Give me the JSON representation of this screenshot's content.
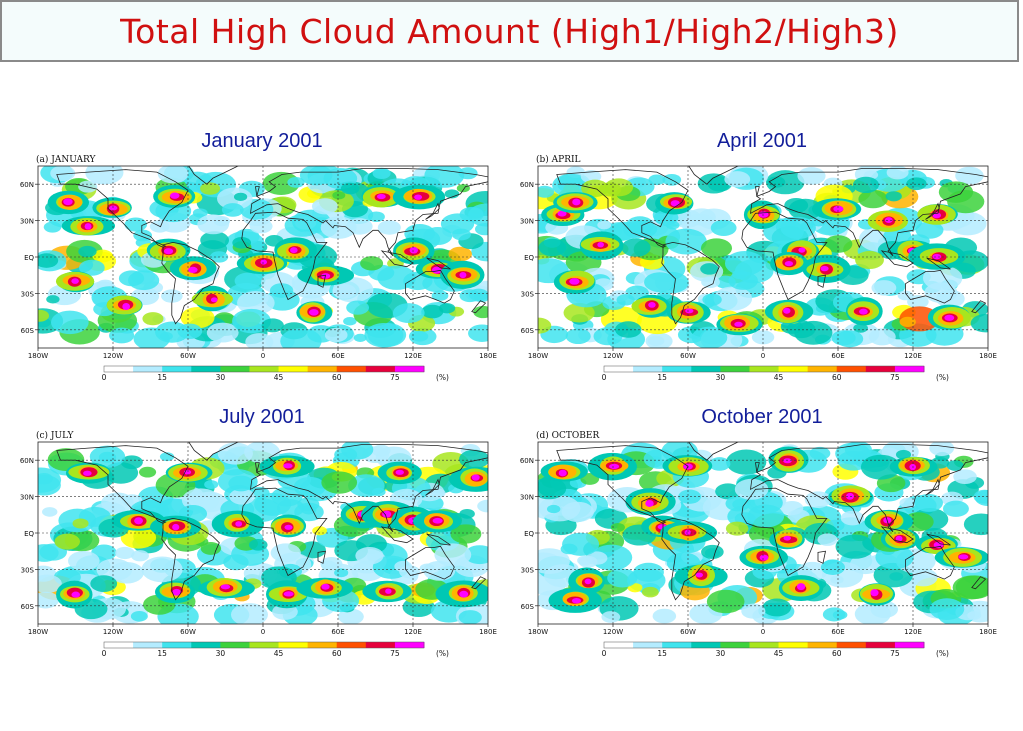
{
  "page_title": "Total High Cloud Amount (High1/High2/High3)",
  "panels": [
    {
      "title": "January 2001",
      "panel_label": "(a) JANUARY"
    },
    {
      "title": "April 2001",
      "panel_label": "(b) APRIL"
    },
    {
      "title": "July 2001",
      "panel_label": "(c) JULY"
    },
    {
      "title": "October 2001",
      "panel_label": "(d) OCTOBER"
    }
  ],
  "lon_ticks": [
    "180W",
    "120W",
    "60W",
    "0",
    "60E",
    "120E",
    "180E"
  ],
  "lat_ticks": [
    "60N",
    "30N",
    "EQ",
    "30S",
    "60S"
  ],
  "colorbar": {
    "ticks": [
      "0",
      "15",
      "30",
      "45",
      "60",
      "75"
    ],
    "unit": "(%)",
    "colors": [
      "#ffffff",
      "#b4ecff",
      "#3fe4ee",
      "#00c8b4",
      "#3cd23c",
      "#a8e61e",
      "#ffff00",
      "#ffb400",
      "#ff5000",
      "#e6003c",
      "#ff00ff"
    ]
  },
  "hotspots": {
    "jan": [
      [
        -155,
        45
      ],
      [
        -70,
        50
      ],
      [
        95,
        50
      ],
      [
        125,
        50
      ],
      [
        -75,
        5
      ],
      [
        -55,
        -10
      ],
      [
        25,
        5
      ],
      [
        50,
        -15
      ],
      [
        120,
        5
      ],
      [
        140,
        -10
      ],
      [
        160,
        -15
      ],
      [
        -40,
        -35
      ],
      [
        -110,
        -40
      ],
      [
        -150,
        -20
      ],
      [
        40,
        -45
      ],
      [
        -140,
        25
      ],
      [
        -120,
        40
      ],
      [
        0,
        -5
      ]
    ],
    "apr": [
      [
        -160,
        35
      ],
      [
        -150,
        45
      ],
      [
        -70,
        45
      ],
      [
        50,
        -10
      ],
      [
        30,
        5
      ],
      [
        20,
        -5
      ],
      [
        120,
        5
      ],
      [
        140,
        0
      ],
      [
        -60,
        -45
      ],
      [
        20,
        -45
      ],
      [
        -130,
        10
      ],
      [
        -150,
        -20
      ],
      [
        0,
        35
      ],
      [
        60,
        40
      ],
      [
        100,
        30
      ],
      [
        140,
        35
      ],
      [
        80,
        -45
      ],
      [
        150,
        -50
      ],
      [
        -20,
        -55
      ],
      [
        -90,
        -40
      ]
    ],
    "jul": [
      [
        -140,
        50
      ],
      [
        -60,
        50
      ],
      [
        20,
        55
      ],
      [
        110,
        50
      ],
      [
        -100,
        10
      ],
      [
        -70,
        5
      ],
      [
        -20,
        8
      ],
      [
        20,
        5
      ],
      [
        80,
        15
      ],
      [
        100,
        15
      ],
      [
        120,
        10
      ],
      [
        140,
        10
      ],
      [
        -150,
        -50
      ],
      [
        -70,
        -48
      ],
      [
        20,
        -50
      ],
      [
        100,
        -48
      ],
      [
        160,
        -50
      ],
      [
        -30,
        -45
      ],
      [
        50,
        -45
      ],
      [
        170,
        45
      ]
    ],
    "oct": [
      [
        -160,
        50
      ],
      [
        -120,
        55
      ],
      [
        -60,
        55
      ],
      [
        20,
        60
      ],
      [
        120,
        55
      ],
      [
        -80,
        5
      ],
      [
        -60,
        0
      ],
      [
        20,
        -5
      ],
      [
        100,
        10
      ],
      [
        110,
        -5
      ],
      [
        140,
        -10
      ],
      [
        160,
        -20
      ],
      [
        -140,
        -40
      ],
      [
        -50,
        -35
      ],
      [
        30,
        -45
      ],
      [
        90,
        -50
      ],
      [
        -150,
        -55
      ],
      [
        0,
        -20
      ],
      [
        70,
        30
      ],
      [
        -90,
        25
      ]
    ]
  }
}
